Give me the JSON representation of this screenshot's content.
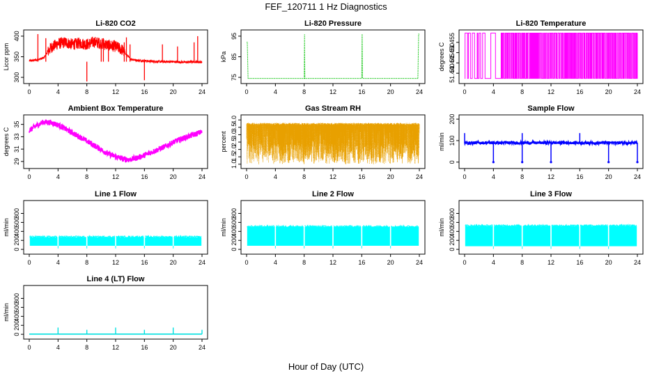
{
  "title": "FEF_120711  1 Hz Diagnostics",
  "xlabel": "Hour of Day (UTC)",
  "colors": {
    "co2": "#ff0000",
    "pressure": "#00c000",
    "licor_temp": "#ff00ff",
    "box_temp": "#ff00ff",
    "rh": "#e8a000",
    "sample_flow": "#0000ff",
    "line_flow": "#00ffff",
    "lt_flow": "#00e0e0"
  },
  "chart_data": [
    {
      "type": "line",
      "title": "Li-820 CO2",
      "xlabel": "",
      "ylabel": "Licor ppm",
      "xlim": [
        0,
        24
      ],
      "ylim": [
        290,
        410
      ],
      "xticks": [
        0,
        4,
        8,
        12,
        16,
        20,
        24
      ],
      "yticks": [
        300,
        350,
        400
      ],
      "color": "co2",
      "style": "co2",
      "x": [
        0,
        1,
        2,
        3,
        4,
        5,
        6,
        7,
        8,
        9,
        10,
        11,
        12,
        13,
        14,
        15,
        16,
        17,
        18,
        19,
        20,
        21,
        22,
        23,
        24
      ],
      "y": [
        340,
        342,
        347,
        372,
        382,
        385,
        380,
        383,
        380,
        386,
        382,
        378,
        375,
        366,
        345,
        341,
        340,
        339,
        338,
        338,
        338,
        337,
        337,
        338,
        337
      ]
    },
    {
      "type": "line",
      "title": "Li-820 Pressure",
      "xlabel": "",
      "ylabel": "kPa",
      "xlim": [
        0,
        24
      ],
      "ylim": [
        73,
        97
      ],
      "xticks": [
        0,
        4,
        8,
        12,
        16,
        20,
        24
      ],
      "yticks": [
        75,
        85,
        95
      ],
      "color": "pressure",
      "style": "pressure",
      "x": [
        0,
        0.1,
        0.2,
        8,
        8.05,
        8.1,
        16,
        16.05,
        16.1,
        23.8,
        23.9,
        24
      ],
      "y": [
        92,
        92,
        74.5,
        74.5,
        96,
        74.5,
        74.5,
        96,
        74.5,
        74.5,
        96,
        96
      ]
    },
    {
      "type": "line",
      "title": "Li-820 Temperature",
      "xlabel": "",
      "ylabel": "degrees C",
      "xlim": [
        0,
        24
      ],
      "ylim": [
        51.436,
        51.46
      ],
      "xticks": [
        0,
        4,
        8,
        12,
        16,
        20,
        24
      ],
      "yticks": [
        51.44,
        51.445,
        51.45,
        51.455
      ],
      "ytick_labels": [
        "51.440",
        "51.445",
        "51.450",
        "51.455"
      ],
      "color": "licor_temp",
      "style": "binary",
      "levels": [
        51.4375,
        51.4595
      ]
    },
    {
      "type": "line",
      "title": "Ambient Box Temperature",
      "xlabel": "",
      "ylabel": "degrees C",
      "xlim": [
        0,
        24
      ],
      "ylim": [
        28.2,
        36.2
      ],
      "xticks": [
        0,
        4,
        8,
        12,
        16,
        20,
        24
      ],
      "yticks": [
        29,
        31,
        33,
        35
      ],
      "color": "box_temp",
      "style": "band",
      "x": [
        0,
        1,
        2,
        3,
        4,
        5,
        6,
        7,
        8,
        9,
        10,
        11,
        12,
        13,
        14,
        15,
        16,
        17,
        18,
        19,
        20,
        21,
        22,
        23,
        24
      ],
      "y": [
        34.0,
        34.8,
        35.4,
        35.3,
        34.9,
        34.3,
        33.6,
        33.0,
        32.3,
        31.6,
        30.9,
        30.2,
        29.8,
        29.4,
        29.3,
        29.6,
        30.0,
        30.5,
        31.0,
        31.5,
        32.1,
        32.6,
        33.0,
        33.4,
        33.8
      ]
    },
    {
      "type": "line",
      "title": "Gas Stream RH",
      "xlabel": "",
      "ylabel": "percent",
      "xlim": [
        0,
        24
      ],
      "ylim": [
        0.85,
        4.2
      ],
      "xticks": [
        0,
        4,
        8,
        12,
        16,
        20,
        24
      ],
      "yticks": [
        1.0,
        1.5,
        2.0,
        2.5,
        3.0,
        3.5,
        4.0
      ],
      "ytick_labels": [
        "1.0",
        "1.5",
        "2.0",
        "2.5",
        "3.0",
        "3.5",
        "4.0"
      ],
      "color": "rh",
      "style": "noise",
      "range": [
        1.0,
        3.8
      ]
    },
    {
      "type": "line",
      "title": "Sample Flow",
      "xlabel": "",
      "ylabel": "ml/min",
      "xlim": [
        0,
        24
      ],
      "ylim": [
        -20,
        210
      ],
      "xticks": [
        0,
        4,
        8,
        12,
        16,
        20,
        24
      ],
      "yticks": [
        0,
        100,
        200
      ],
      "color": "sample_flow",
      "style": "sample",
      "baseline": 90,
      "dips_at": [
        4,
        8,
        12,
        20,
        24
      ],
      "spikes_at": [
        0,
        8,
        16
      ],
      "dip_value": 0,
      "spike_value": 135
    },
    {
      "type": "line",
      "title": "Line 1 Flow",
      "xlabel": "",
      "ylabel": "ml/min",
      "xlim": [
        0,
        24
      ],
      "ylim": [
        -60,
        1040
      ],
      "xticks": [
        0,
        4,
        8,
        12,
        16,
        20,
        24
      ],
      "yticks": [
        0,
        200,
        400,
        600,
        800
      ],
      "color": "line_flow",
      "style": "band_flow",
      "range": [
        80,
        270
      ],
      "gaps_at": [
        4,
        8,
        12,
        16,
        20
      ]
    },
    {
      "type": "line",
      "title": "Line 2 Flow",
      "xlabel": "",
      "ylabel": "ml/min",
      "xlim": [
        0,
        24
      ],
      "ylim": [
        -60,
        1040
      ],
      "xticks": [
        0,
        4,
        8,
        12,
        16,
        20,
        24
      ],
      "yticks": [
        0,
        200,
        400,
        600,
        800
      ],
      "color": "line_flow",
      "style": "band_flow",
      "range": [
        80,
        500
      ],
      "gaps_at": [
        4,
        8,
        12,
        16,
        20
      ]
    },
    {
      "type": "line",
      "title": "Line 3 Flow",
      "xlabel": "",
      "ylabel": "ml/min",
      "xlim": [
        0,
        24
      ],
      "ylim": [
        -60,
        1040
      ],
      "xticks": [
        0,
        4,
        8,
        12,
        16,
        20,
        24
      ],
      "yticks": [
        0,
        200,
        400,
        600,
        800
      ],
      "color": "line_flow",
      "style": "band_flow",
      "range": [
        70,
        520
      ],
      "gaps_at": [
        4,
        8,
        12,
        16,
        20
      ]
    },
    {
      "type": "line",
      "title": "Line 4 (LT) Flow",
      "xlabel": "",
      "ylabel": "ml/min",
      "xlim": [
        0,
        24
      ],
      "ylim": [
        -60,
        1040
      ],
      "xticks": [
        0,
        4,
        8,
        12,
        16,
        20,
        24
      ],
      "yticks": [
        0,
        200,
        400,
        600,
        800
      ],
      "color": "lt_flow",
      "style": "lt",
      "baseline": 5,
      "spikes_at": [
        4,
        8,
        12,
        16,
        20,
        24
      ],
      "spike_values": [
        150,
        100,
        150,
        100,
        150,
        100
      ]
    }
  ]
}
